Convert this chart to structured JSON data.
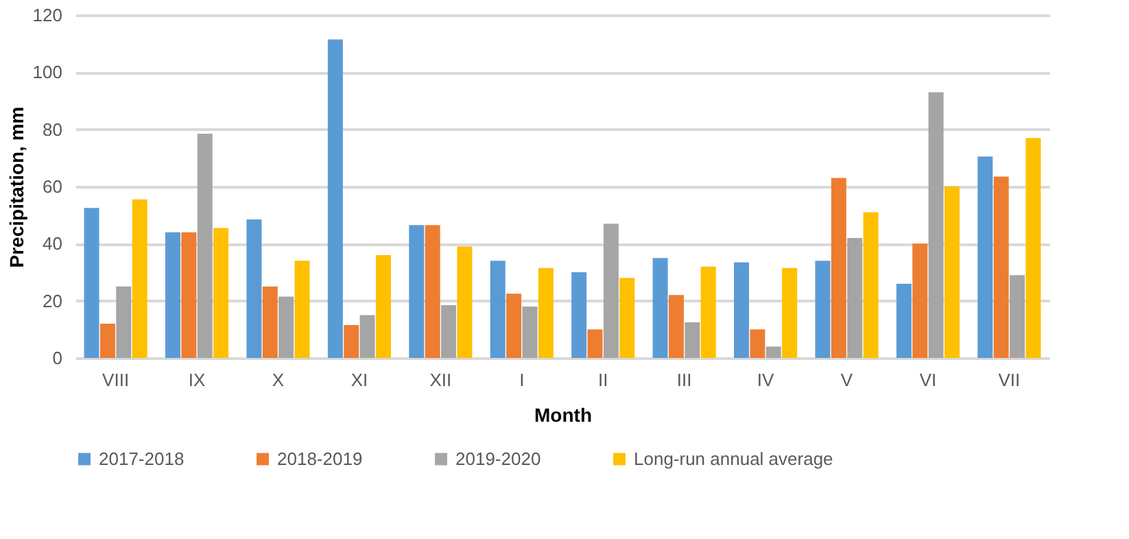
{
  "chart_data": {
    "type": "bar",
    "xlabel": "Month",
    "ylabel": "Precipitation, mm",
    "categories": [
      "VIII",
      "IX",
      "X",
      "XI",
      "XII",
      "I",
      "II",
      "III",
      "IV",
      "V",
      "VI",
      "VII"
    ],
    "series": [
      {
        "name": "2017-2018",
        "color": "#5b9bd5",
        "values": [
          52.5,
          44,
          48.5,
          111.5,
          46.5,
          34,
          30,
          35,
          33.5,
          34,
          26,
          70.5
        ]
      },
      {
        "name": "2018-2019",
        "color": "#ed7d31",
        "values": [
          12,
          44,
          25,
          11.5,
          46.5,
          22.5,
          10,
          22,
          10,
          63,
          40,
          63.5
        ]
      },
      {
        "name": "2019-2020",
        "color": "#a5a5a5",
        "values": [
          25,
          78.5,
          21.5,
          15,
          18.5,
          18,
          47,
          12.5,
          4,
          42,
          93,
          29
        ]
      },
      {
        "name": "Long-run annual average",
        "color": "#ffc000",
        "values": [
          55.5,
          45.5,
          34,
          36,
          39,
          31.5,
          28,
          32,
          31.5,
          51,
          60,
          77
        ]
      }
    ],
    "ylim": [
      0,
      120
    ],
    "yticks": [
      0,
      20,
      40,
      60,
      80,
      100,
      120
    ],
    "grid": "y",
    "legend": "bottom"
  }
}
